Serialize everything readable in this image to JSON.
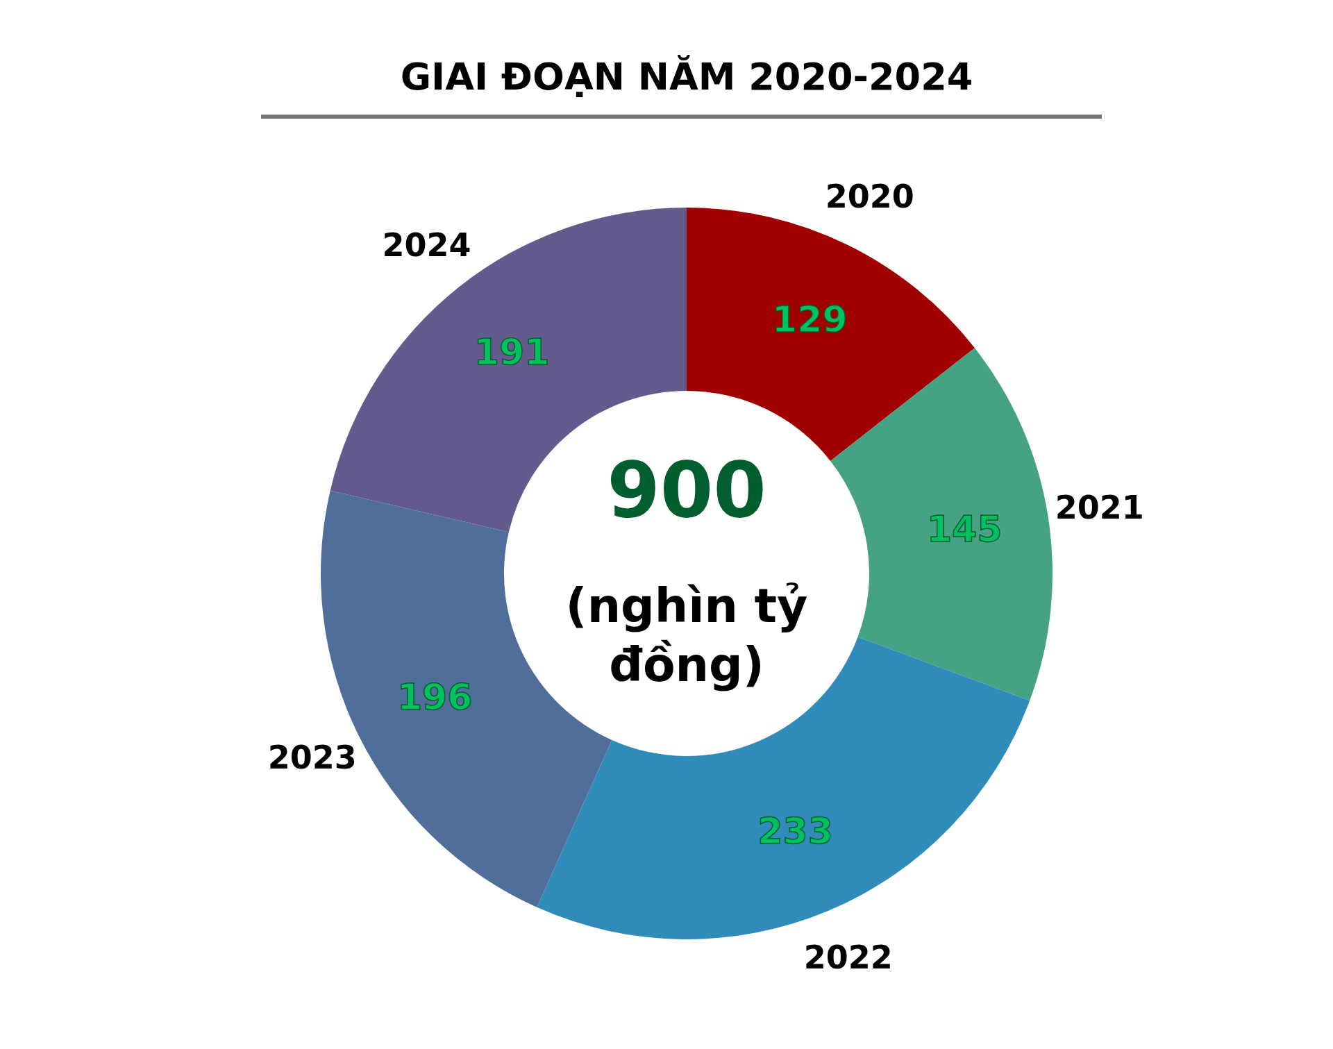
{
  "chart_data": {
    "type": "donut",
    "title": "GIAI ĐOẠN NĂM 2020-2024",
    "categories": [
      "2020",
      "2021",
      "2022",
      "2023",
      "2024"
    ],
    "values": [
      129,
      145,
      233,
      196,
      191
    ],
    "colors": [
      "#a00000",
      "#45a283",
      "#2e8bba",
      "#4f6f9a",
      "#635a8e"
    ],
    "data_labels": true,
    "annotations": [
      "900",
      "(nghìn tỷ đồng)"
    ]
  }
}
